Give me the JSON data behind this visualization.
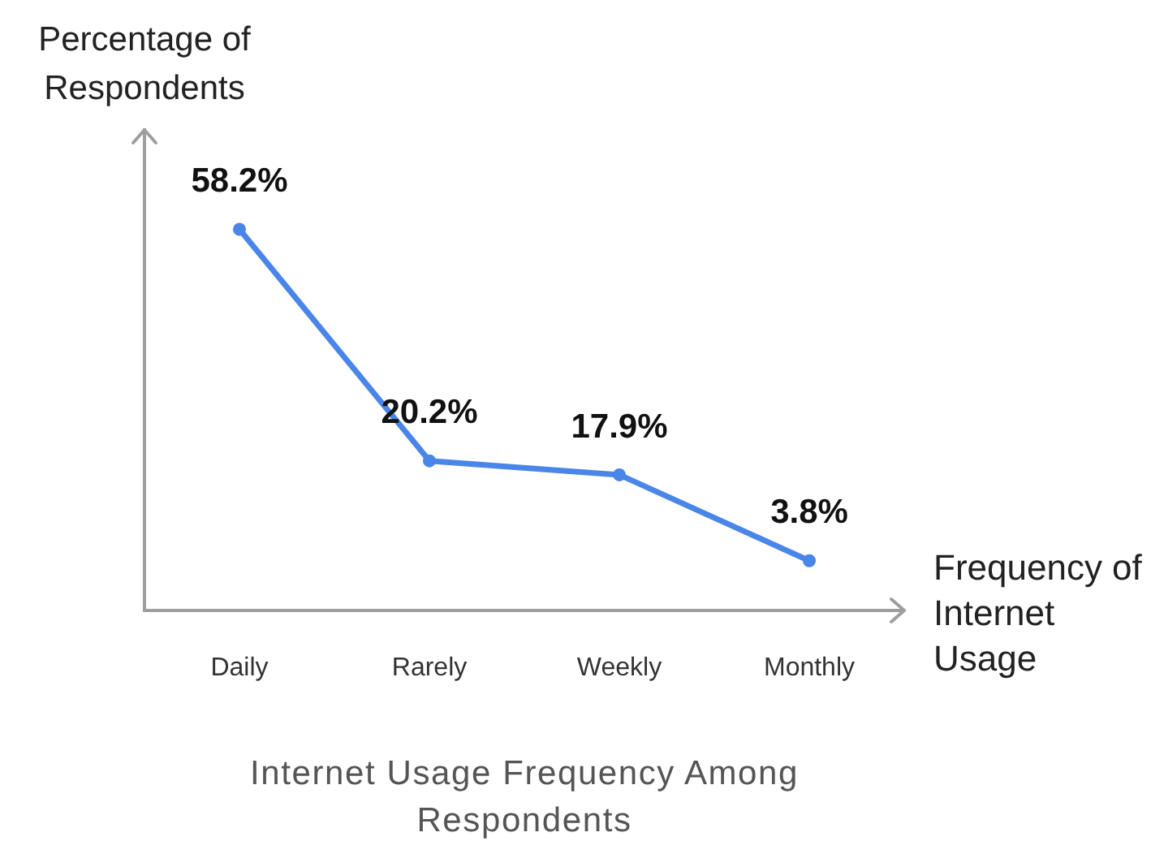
{
  "chart_data": {
    "type": "line",
    "title": "Internet Usage Frequency Among Respondents",
    "xlabel": "Frequency of Internet Usage",
    "ylabel": "Percentage of Respondents",
    "categories": [
      "Daily",
      "Rarely",
      "Weekly",
      "Monthly"
    ],
    "series": [
      {
        "color": "#4a86e8",
        "values": [
          58.2,
          20.2,
          17.9,
          3.8
        ],
        "value_labels": [
          "58.2%",
          "20.2%",
          "17.9%",
          "3.8%"
        ]
      }
    ],
    "tick_labels": "x",
    "grid": false,
    "legend": false,
    "marker": "circle",
    "line_style": "solid"
  }
}
